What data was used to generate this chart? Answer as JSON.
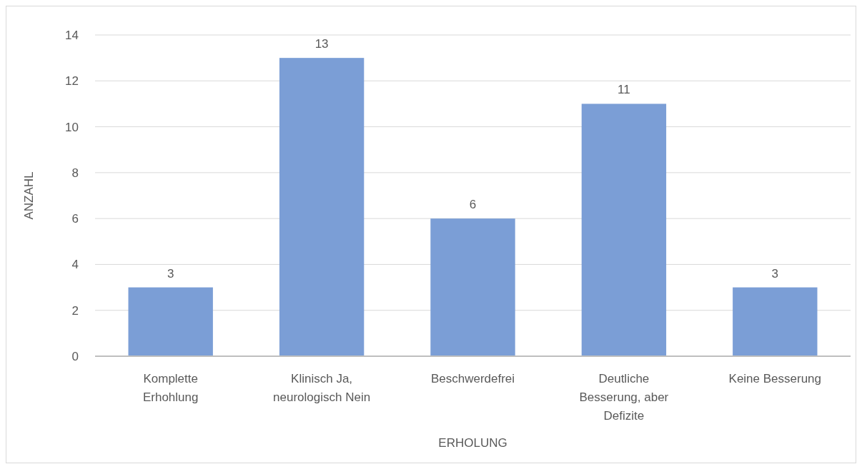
{
  "chart_data": {
    "type": "bar",
    "xlabel": "ERHOLUNG",
    "ylabel": "ANZAHL",
    "categories": [
      "Komplette Erhohlung",
      "Klinisch Ja, neurologisch Nein",
      "Beschwerdefrei",
      "Deutliche Besserung, aber Defizite",
      "Keine Besserung"
    ],
    "values": [
      3,
      13,
      6,
      11,
      3
    ],
    "color": "#7b9ed6",
    "ylim": [
      0,
      14
    ],
    "yticks": [
      0,
      2,
      4,
      6,
      8,
      10,
      12,
      14
    ],
    "grid": "y",
    "data_labels": true
  }
}
